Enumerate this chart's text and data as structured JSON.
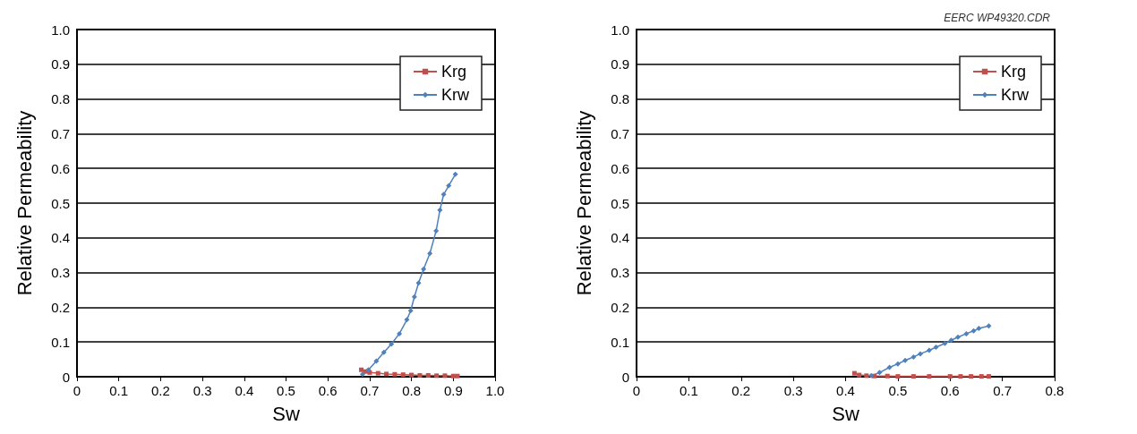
{
  "chart_data": [
    {
      "type": "line",
      "xlabel": "Sw",
      "ylabel": "Relative Permeability",
      "xlim": [
        0,
        1
      ],
      "ylim": [
        0,
        1
      ],
      "xticks": [
        0,
        0.1,
        0.2,
        0.3,
        0.4,
        0.5,
        0.6,
        0.7,
        0.8,
        0.9,
        {
          "value": 1,
          "label": "1.0"
        }
      ],
      "yticks": [
        0,
        0.1,
        0.2,
        0.3,
        0.4,
        0.5,
        0.6,
        0.7,
        0.8,
        0.9,
        {
          "value": 1,
          "label": "1.0"
        }
      ],
      "grid": "y",
      "legend": "top right",
      "series": [
        {
          "name": "Krg",
          "color": "#c0504d",
          "marker": "square",
          "x": [
            0.68,
            0.69,
            0.7,
            0.72,
            0.74,
            0.76,
            0.78,
            0.8,
            0.82,
            0.84,
            0.86,
            0.88,
            0.9,
            0.91
          ],
          "values": [
            0.02,
            0.015,
            0.012,
            0.01,
            0.008,
            0.007,
            0.006,
            0.005,
            0.004,
            0.004,
            0.003,
            0.003,
            0.002,
            0.002
          ]
        },
        {
          "name": "Krw",
          "color": "#4f81bd",
          "marker": "diamond",
          "x": [
            0.683,
            0.697,
            0.716,
            0.734,
            0.752,
            0.771,
            0.789,
            0.798,
            0.807,
            0.817,
            0.829,
            0.844,
            0.859,
            0.868,
            0.877,
            0.889,
            0.905
          ],
          "values": [
            0.007,
            0.02,
            0.045,
            0.07,
            0.094,
            0.124,
            0.164,
            0.19,
            0.23,
            0.27,
            0.31,
            0.355,
            0.42,
            0.48,
            0.525,
            0.55,
            0.583
          ]
        }
      ]
    },
    {
      "type": "line",
      "xlabel": "Sw",
      "ylabel": "Relative Permeability",
      "xlim": [
        0,
        0.8
      ],
      "ylim": [
        0,
        1
      ],
      "xticks": [
        0,
        0.1,
        0.2,
        0.3,
        0.4,
        0.5,
        0.6,
        0.7,
        0.8
      ],
      "yticks": [
        0,
        0.1,
        0.2,
        0.3,
        0.4,
        0.5,
        0.6,
        0.7,
        0.8,
        0.9,
        {
          "value": 1,
          "label": "1.0"
        }
      ],
      "grid": "y",
      "legend": "top right",
      "annotations": [
        "EERC WP49320.CDR"
      ],
      "series": [
        {
          "name": "Krg",
          "color": "#c0504d",
          "marker": "square",
          "x": [
            0.417,
            0.426,
            0.44,
            0.455,
            0.48,
            0.5,
            0.53,
            0.56,
            0.6,
            0.62,
            0.64,
            0.66,
            0.674
          ],
          "values": [
            0.01,
            0.005,
            0.003,
            0.002,
            0.002,
            0.001,
            0.001,
            0.001,
            0.001,
            0.001,
            0.001,
            0.001,
            0.001
          ]
        },
        {
          "name": "Krw",
          "color": "#4f81bd",
          "marker": "diamond",
          "x": [
            0.449,
            0.465,
            0.484,
            0.5,
            0.514,
            0.53,
            0.543,
            0.56,
            0.573,
            0.59,
            0.602,
            0.615,
            0.631,
            0.645,
            0.655,
            0.674
          ],
          "values": [
            0.003,
            0.012,
            0.027,
            0.037,
            0.047,
            0.057,
            0.066,
            0.076,
            0.085,
            0.096,
            0.105,
            0.114,
            0.124,
            0.132,
            0.139,
            0.146
          ]
        }
      ]
    }
  ]
}
